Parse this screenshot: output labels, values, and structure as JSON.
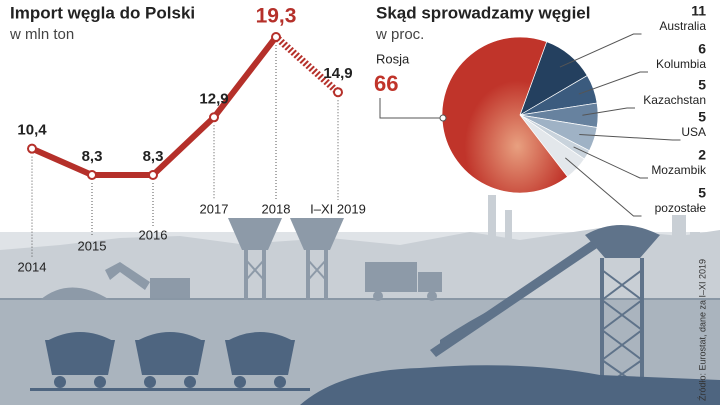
{
  "chart_data": [
    {
      "type": "line",
      "title": "Import węgla do Polski",
      "subtitle": "w mln ton",
      "categories": [
        "2014",
        "2015",
        "2016",
        "2017",
        "2018",
        "I–XI 2019"
      ],
      "values": [
        10.4,
        8.3,
        8.3,
        12.9,
        19.3,
        14.9
      ],
      "value_labels": [
        "10,4",
        "8,3",
        "8,3",
        "12,9",
        "19,3",
        "14,9"
      ],
      "color": "#b5302a"
    },
    {
      "type": "pie",
      "title": "Skąd sprowadzamy węgiel",
      "subtitle": "w proc.",
      "categories": [
        "Rosja",
        "Australia",
        "Kolumbia",
        "Kazachstan",
        "USA",
        "Mozambik",
        "pozostałe"
      ],
      "values": [
        66,
        11,
        6,
        5,
        5,
        2,
        5
      ],
      "colors": [
        "#c0342a",
        "#24405f",
        "#3b5b7e",
        "#67829f",
        "#9fb2c5",
        "#c9d3dc",
        "#e3e7eb"
      ]
    }
  ],
  "source": "Źródło: Eurostat, dane za I–XI 2019"
}
